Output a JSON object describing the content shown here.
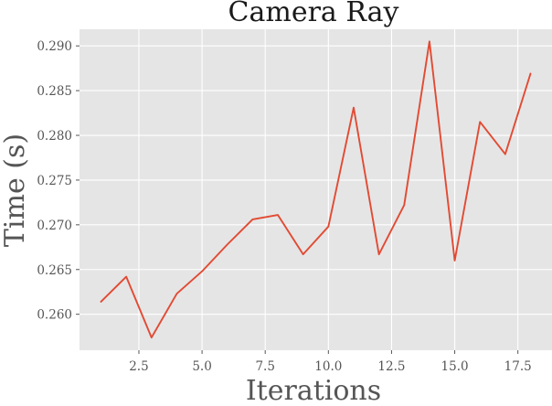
{
  "chart_data": {
    "type": "line",
    "title": "Camera Ray",
    "xlabel": "Iterations",
    "ylabel": "Time (s)",
    "xlim": [
      0.15,
      18.85
    ],
    "ylim": [
      0.25598,
      0.29186
    ],
    "xticks": [
      2.5,
      5.0,
      7.5,
      10.0,
      12.5,
      15.0,
      17.5
    ],
    "xtick_labels": [
      "2.5",
      "5.0",
      "7.5",
      "10.0",
      "12.5",
      "15.0",
      "17.5"
    ],
    "yticks": [
      0.26,
      0.265,
      0.27,
      0.275,
      0.28,
      0.285,
      0.29
    ],
    "ytick_labels": [
      "0.260",
      "0.265",
      "0.270",
      "0.275",
      "0.280",
      "0.285",
      "0.290"
    ],
    "grid": true,
    "series": [
      {
        "name": "",
        "color": "#E24A33",
        "x": [
          1,
          2,
          3,
          4,
          5,
          6,
          7,
          8,
          9,
          10,
          11,
          12,
          13,
          14,
          15,
          16,
          17,
          18
        ],
        "y": [
          0.2614,
          0.2642,
          0.2574,
          0.2623,
          0.2648,
          0.2678,
          0.2706,
          0.2711,
          0.2667,
          0.2698,
          0.2831,
          0.2667,
          0.2722,
          0.2905,
          0.266,
          0.2815,
          0.2779,
          0.2869
        ]
      }
    ]
  },
  "style": {
    "plot_background": "#E5E5E5",
    "grid_color": "#FFFFFF",
    "text_color": "#555555",
    "title_color": "#1A1A1A"
  }
}
